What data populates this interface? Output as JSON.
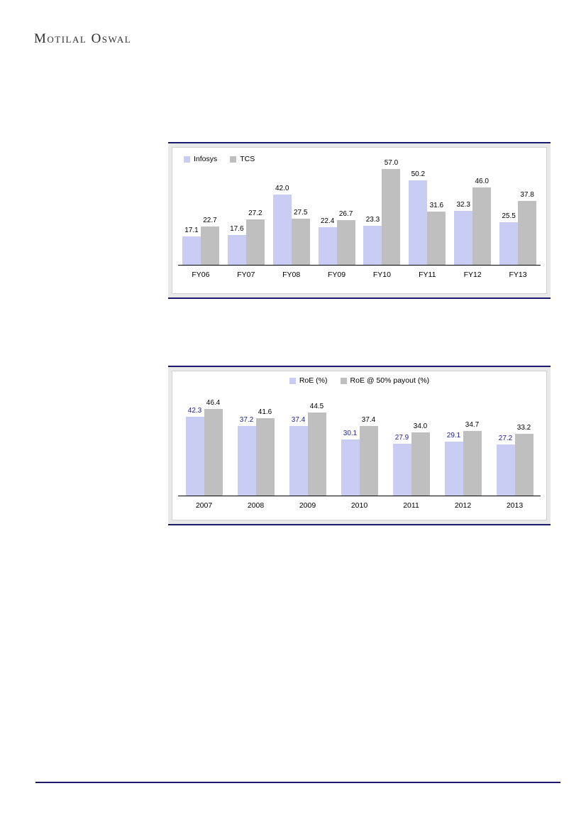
{
  "header": {
    "logo_text": "Motilal Oswal"
  },
  "chart_data": [
    {
      "type": "bar",
      "title": "",
      "legend_position": "top-left",
      "grid": false,
      "ylim": [
        0,
        60
      ],
      "categories": [
        "FY06",
        "FY07",
        "FY08",
        "FY09",
        "FY10",
        "FY11",
        "FY12",
        "FY13"
      ],
      "series": [
        {
          "name": "Infosys",
          "color": "#c9ccf3",
          "label_color": "#000000",
          "values": [
            17.1,
            17.6,
            42.0,
            22.4,
            23.3,
            50.2,
            32.3,
            25.5
          ]
        },
        {
          "name": "TCS",
          "color": "#bfbfbf",
          "label_color": "#000000",
          "values": [
            22.7,
            27.2,
            27.5,
            26.7,
            57.0,
            31.6,
            46.0,
            37.8
          ]
        }
      ]
    },
    {
      "type": "bar",
      "title": "",
      "legend_position": "top-center",
      "grid": false,
      "ylim": [
        0,
        50
      ],
      "categories": [
        "2007",
        "2008",
        "2009",
        "2010",
        "2011",
        "2012",
        "2013"
      ],
      "series": [
        {
          "name": "RoE (%)",
          "color": "#c9ccf3",
          "label_color": "#232394",
          "values": [
            42.3,
            37.2,
            37.4,
            30.1,
            27.9,
            29.1,
            27.2
          ]
        },
        {
          "name": "RoE @ 50% payout (%)",
          "color": "#bfbfbf",
          "label_color": "#000000",
          "values": [
            46.4,
            41.6,
            44.5,
            37.4,
            34.0,
            34.7,
            33.2
          ]
        }
      ]
    }
  ]
}
